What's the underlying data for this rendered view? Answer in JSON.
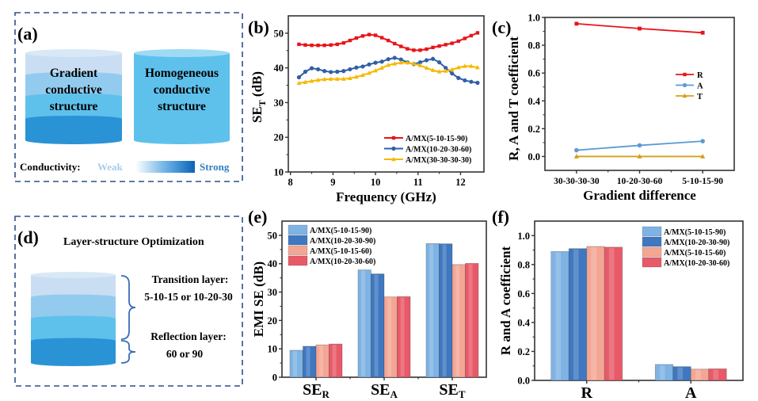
{
  "panels": {
    "a": {
      "label": "(a)",
      "gradient_title": [
        "Gradient",
        "conductive",
        "structure"
      ],
      "homogeneous_title": [
        "Homogeneous",
        "conductive",
        "structure"
      ],
      "conductivity_label": "Conductivity:",
      "weak_label": "Weak",
      "strong_label": "Strong",
      "colors": {
        "layer1": "#c9def2",
        "layer2": "#92cbee",
        "layer3": "#5ec1ec",
        "layer4": "#2a93d6",
        "homogeneous": "#5ec1ec",
        "weak": "#a8cdea",
        "strong": "#2f7fc2"
      }
    },
    "d": {
      "label": "(d)",
      "title": "Layer-structure Optimization",
      "transition_label": "Transition layer:",
      "transition_value": "5-10-15 or 10-20-30",
      "reflection_label": "Reflection layer:",
      "reflection_value": "60 or 90"
    },
    "b": {
      "label": "(b)"
    },
    "c": {
      "label": "(c)"
    },
    "e": {
      "label": "(e)"
    },
    "f": {
      "label": "(f)"
    }
  },
  "chart_data": [
    {
      "id": "b",
      "type": "line",
      "title": "",
      "xlabel": "Frequency (GHz)",
      "ylabel": "SE_T (dB)",
      "xlim": [
        7.95,
        12.55
      ],
      "ylim": [
        10,
        55
      ],
      "xticks": [
        8,
        9,
        10,
        11,
        12
      ],
      "yticks": [
        10,
        20,
        30,
        40,
        50
      ],
      "legend": "bottom-right",
      "x": [
        8.2,
        8.35,
        8.5,
        8.65,
        8.8,
        8.95,
        9.1,
        9.25,
        9.4,
        9.55,
        9.7,
        9.85,
        10.0,
        10.15,
        10.3,
        10.45,
        10.6,
        10.75,
        10.9,
        11.05,
        11.2,
        11.35,
        11.5,
        11.65,
        11.8,
        11.95,
        12.1,
        12.25,
        12.4
      ],
      "series": [
        {
          "name": "A/MX(5-10-15-90)",
          "color": "#e8141b",
          "marker": "square",
          "values": [
            46.8,
            46.6,
            46.5,
            46.5,
            46.5,
            46.6,
            46.8,
            47.2,
            47.9,
            48.6,
            49.2,
            49.6,
            49.4,
            48.7,
            47.9,
            47.0,
            46.2,
            45.5,
            45.1,
            45.1,
            45.4,
            45.9,
            46.3,
            46.7,
            47.1,
            47.7,
            48.5,
            49.3,
            50.1
          ]
        },
        {
          "name": "A/MX(10-20-30-60)",
          "color": "#2f5fa6",
          "marker": "circle",
          "values": [
            37.3,
            38.9,
            39.9,
            39.6,
            39.1,
            38.8,
            38.9,
            39.1,
            39.6,
            40.1,
            40.4,
            41.0,
            41.5,
            41.8,
            42.5,
            42.9,
            42.4,
            41.6,
            41.1,
            41.6,
            42.2,
            42.6,
            41.6,
            40.0,
            38.4,
            37.1,
            36.4,
            36.0,
            35.7
          ]
        },
        {
          "name": "A/MX(30-30-30-30)",
          "color": "#f5b800",
          "marker": "triangle",
          "values": [
            35.6,
            35.9,
            36.2,
            36.5,
            36.7,
            36.8,
            36.8,
            36.8,
            37.0,
            37.4,
            37.9,
            38.5,
            39.2,
            40.0,
            40.8,
            41.2,
            41.5,
            41.5,
            41.2,
            40.7,
            40.0,
            39.3,
            38.9,
            39.1,
            39.5,
            40.1,
            40.5,
            40.5,
            40.1
          ]
        }
      ]
    },
    {
      "id": "c",
      "type": "line",
      "xlabel": "Gradient difference",
      "ylabel": "R, A and T coefficient",
      "categories": [
        "30-30-30-30",
        "10-20-30-60",
        "5-10-15-90"
      ],
      "ylim": [
        -0.1,
        1.0
      ],
      "yticks": [
        0.0,
        0.2,
        0.4,
        0.6,
        0.8,
        1.0
      ],
      "legend": "center-right",
      "series": [
        {
          "name": "R",
          "color": "#e8141b",
          "marker": "square",
          "values": [
            0.955,
            0.92,
            0.89
          ]
        },
        {
          "name": "A",
          "color": "#5b9bd5",
          "marker": "circle",
          "values": [
            0.045,
            0.08,
            0.11
          ]
        },
        {
          "name": "T",
          "color": "#d4a017",
          "marker": "triangle",
          "values": [
            0.0,
            0.0,
            0.0
          ]
        }
      ]
    },
    {
      "id": "e",
      "type": "bar",
      "xlabel": "",
      "ylabel": "EMI SE (dB)",
      "categories": [
        "SE_R",
        "SE_A",
        "SE_T"
      ],
      "category_main": [
        "SE",
        "SE",
        "SE"
      ],
      "category_sub": [
        "R",
        "A",
        "T"
      ],
      "ylim": [
        0,
        55
      ],
      "yticks": [
        0,
        10,
        20,
        30,
        40,
        50
      ],
      "legend": "top-left",
      "series": [
        {
          "name": "A/MX(5-10-15-90)",
          "color": "#7fb3e3",
          "values": [
            9.5,
            37.8,
            47.1
          ]
        },
        {
          "name": "A/MX(10-20-30-90)",
          "color": "#3f78c0",
          "values": [
            10.9,
            36.4,
            47.0
          ]
        },
        {
          "name": "A/MX(5-10-15-60)",
          "color": "#f4a694",
          "values": [
            11.4,
            28.3,
            39.7
          ]
        },
        {
          "name": "A/MX(10-20-30-60)",
          "color": "#e85a68",
          "values": [
            11.7,
            28.4,
            40.1
          ]
        }
      ]
    },
    {
      "id": "f",
      "type": "bar",
      "xlabel": "",
      "ylabel": "R and A coefficient",
      "categories": [
        "R",
        "A"
      ],
      "ylim": [
        0,
        1.1
      ],
      "yticks": [
        0.0,
        0.2,
        0.4,
        0.6,
        0.8,
        1.0
      ],
      "legend": "top-right",
      "series": [
        {
          "name": "A/MX(5-10-15-90)",
          "color": "#7fb3e3",
          "values": [
            0.89,
            0.11
          ]
        },
        {
          "name": "A/MX(10-20-30-90)",
          "color": "#3f78c0",
          "values": [
            0.91,
            0.095
          ]
        },
        {
          "name": "A/MX(5-10-15-60)",
          "color": "#f4a694",
          "values": [
            0.925,
            0.078
          ]
        },
        {
          "name": "A/MX(10-20-30-60)",
          "color": "#e85a68",
          "values": [
            0.92,
            0.08
          ]
        }
      ]
    }
  ]
}
